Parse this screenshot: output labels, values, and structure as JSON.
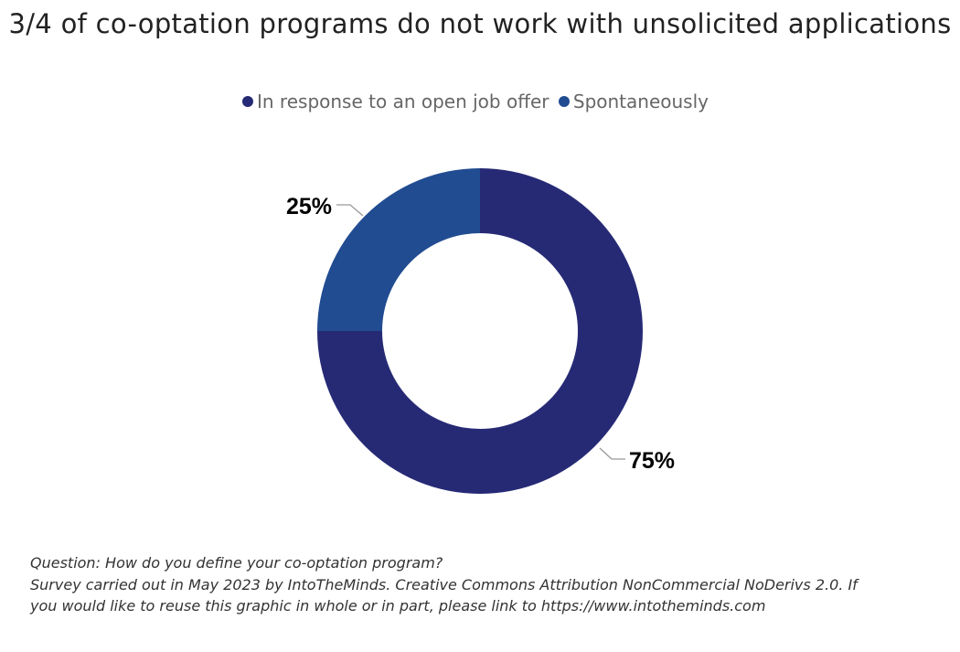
{
  "chart_data": {
    "type": "pie",
    "subtype": "donut",
    "title": "3/4 of co-optation programs do not work with unsolicited applications",
    "legend_position": "top",
    "categories": [
      "In response to an open job offer",
      "Spontaneously"
    ],
    "values": [
      75,
      25
    ],
    "data_labels": [
      "75%",
      "25%"
    ],
    "colors": [
      "#262A75",
      "#214C91"
    ]
  },
  "footnote": {
    "lines": [
      "Question: How do you define your co-optation program?",
      "Survey carried out in May 2023 by IntoTheMinds. Creative Commons Attribution NonCommercial NoDerivs 2.0. If",
      "you would like to reuse this graphic in whole or in part, please link to https://www.intotheminds.com"
    ]
  }
}
